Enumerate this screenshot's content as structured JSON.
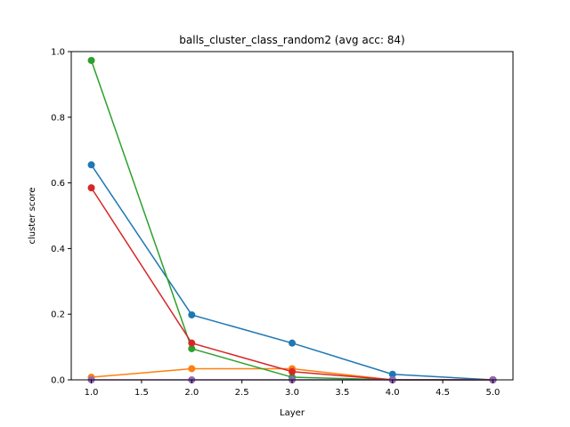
{
  "chart_data": {
    "type": "line",
    "title": "balls_cluster_class_random2 (avg acc: 84)",
    "xlabel": "Layer",
    "ylabel": "cluster score",
    "xlim": [
      0.8,
      5.2
    ],
    "ylim": [
      0,
      1.0
    ],
    "xticks": [
      "1.0",
      "1.5",
      "2.0",
      "2.5",
      "3.0",
      "3.5",
      "4.0",
      "4.5",
      "5.0"
    ],
    "yticks": [
      "0.0",
      "0.2",
      "0.4",
      "0.6",
      "0.8",
      "1.0"
    ],
    "grid": false,
    "x": [
      1,
      2,
      3,
      4,
      5
    ],
    "series": [
      {
        "color": "#1f77b4",
        "values": [
          0.655,
          0.198,
          0.112,
          0.017,
          0.0
        ]
      },
      {
        "color": "#ff7f0e",
        "values": [
          0.008,
          0.034,
          0.034,
          0.0,
          0.0
        ]
      },
      {
        "color": "#2ca02c",
        "values": [
          0.973,
          0.095,
          0.008,
          0.0,
          0.0
        ]
      },
      {
        "color": "#d62728",
        "values": [
          0.585,
          0.112,
          0.025,
          0.0,
          0.0
        ]
      },
      {
        "color": "#9467bd",
        "values": [
          0.0,
          0.0,
          0.0,
          0.0,
          0.0
        ]
      }
    ]
  }
}
